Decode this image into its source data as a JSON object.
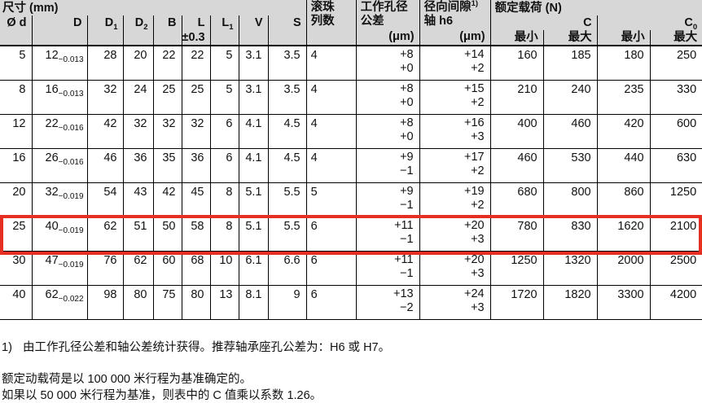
{
  "header": {
    "size_group": "尺寸 (mm)",
    "dims": [
      {
        "t": "Ø d"
      },
      {
        "t": "D"
      },
      {
        "t": "D",
        "sub": "1"
      },
      {
        "t": "D",
        "sub": "2"
      },
      {
        "t": "B"
      },
      {
        "t": "L"
      },
      {
        "t": "L",
        "sub": "1"
      },
      {
        "t": "V"
      },
      {
        "t": "S"
      }
    ],
    "l_tol": "±0.3",
    "ball": [
      "滚珠",
      "列数"
    ],
    "bore": {
      "l1": "工作孔径",
      "l2": "公差",
      "unit": "(μm)"
    },
    "clearance": {
      "l1": "径向间隙",
      "sup": "1)",
      "l2": "轴 h6",
      "unit": "(μm)"
    },
    "load": {
      "label": "额定载荷 (N)",
      "c": "C",
      "c0": {
        "t": "C",
        "sub": "0"
      },
      "min": "最小",
      "max": "最大"
    }
  },
  "rows": [
    {
      "d": "5",
      "D": "12",
      "D_tol": "−0.013",
      "D1": "28",
      "D2": "20",
      "B": "22",
      "L": "22",
      "L1": "5",
      "V": "3.1",
      "S": "3.5",
      "balls": "4",
      "bore": [
        "+8",
        "+0"
      ],
      "clearance": [
        "+14",
        "+2"
      ],
      "C_min": "160",
      "C_max": "185",
      "C0_min": "180",
      "C0_max": "250",
      "highlight": false
    },
    {
      "d": "8",
      "D": "16",
      "D_tol": "−0.013",
      "D1": "32",
      "D2": "24",
      "B": "25",
      "L": "25",
      "L1": "5",
      "V": "3.1",
      "S": "3.5",
      "balls": "4",
      "bore": [
        "+8",
        "+0"
      ],
      "clearance": [
        "+15",
        "+2"
      ],
      "C_min": "210",
      "C_max": "240",
      "C0_min": "235",
      "C0_max": "330",
      "highlight": false
    },
    {
      "d": "12",
      "D": "22",
      "D_tol": "−0.016",
      "D1": "42",
      "D2": "32",
      "B": "32",
      "L": "32",
      "L1": "6",
      "V": "4.1",
      "S": "4.5",
      "balls": "4",
      "bore": [
        "+8",
        "+0"
      ],
      "clearance": [
        "+16",
        "+3"
      ],
      "C_min": "400",
      "C_max": "460",
      "C0_min": "420",
      "C0_max": "600",
      "highlight": false
    },
    {
      "d": "16",
      "D": "26",
      "D_tol": "−0.016",
      "D1": "46",
      "D2": "36",
      "B": "35",
      "L": "36",
      "L1": "6",
      "V": "4.1",
      "S": "4.5",
      "balls": "4",
      "bore": [
        "+9",
        "−1"
      ],
      "clearance": [
        "+17",
        "+2"
      ],
      "C_min": "460",
      "C_max": "530",
      "C0_min": "440",
      "C0_max": "630",
      "highlight": false
    },
    {
      "d": "20",
      "D": "32",
      "D_tol": "−0.019",
      "D1": "54",
      "D2": "43",
      "B": "42",
      "L": "45",
      "L1": "8",
      "V": "5.1",
      "S": "5.5",
      "balls": "5",
      "bore": [
        "+9",
        "−1"
      ],
      "clearance": [
        "+19",
        "+2"
      ],
      "C_min": "680",
      "C_max": "800",
      "C0_min": "860",
      "C0_max": "1250",
      "highlight": false
    },
    {
      "d": "25",
      "D": "40",
      "D_tol": "−0.019",
      "D1": "62",
      "D2": "51",
      "B": "50",
      "L": "58",
      "L1": "8",
      "V": "5.1",
      "S": "5.5",
      "balls": "6",
      "bore": [
        "+11",
        "−1"
      ],
      "clearance": [
        "+20",
        "+3"
      ],
      "C_min": "780",
      "C_max": "830",
      "C0_min": "1620",
      "C0_max": "2100",
      "highlight": true
    },
    {
      "d": "30",
      "D": "47",
      "D_tol": "−0.019",
      "D1": "76",
      "D2": "62",
      "B": "60",
      "L": "68",
      "L1": "10",
      "V": "6.1",
      "S": "6.6",
      "balls": "6",
      "bore": [
        "+11",
        "−1"
      ],
      "clearance": [
        "+20",
        "+3"
      ],
      "C_min": "1250",
      "C_max": "1320",
      "C0_min": "2000",
      "C0_max": "2500",
      "highlight": false
    },
    {
      "d": "40",
      "D": "62",
      "D_tol": "−0.022",
      "D1": "98",
      "D2": "80",
      "B": "75",
      "L": "80",
      "L1": "13",
      "V": "8.1",
      "S": "9",
      "balls": "6",
      "bore": [
        "+13",
        "−2"
      ],
      "clearance": [
        "+24",
        "+3"
      ],
      "C_min": "1720",
      "C_max": "1820",
      "C0_min": "3300",
      "C0_max": "4200",
      "highlight": false
    }
  ],
  "footnotes": {
    "note1_prefix": "1)",
    "note1": "由工作孔径公差和轴公差统计获得。推荐轴承座孔公差为：H6 或 H7。",
    "line2": "额定动载荷是以 100 000 米行程为基准确定的。",
    "line3": "如果以 50 000 米行程为基准，则表中的 C 值乘以系数 1.26。"
  },
  "colors": {
    "header_bg": "#d7d7d7",
    "highlight": "#e62e22",
    "border": "#000000"
  }
}
